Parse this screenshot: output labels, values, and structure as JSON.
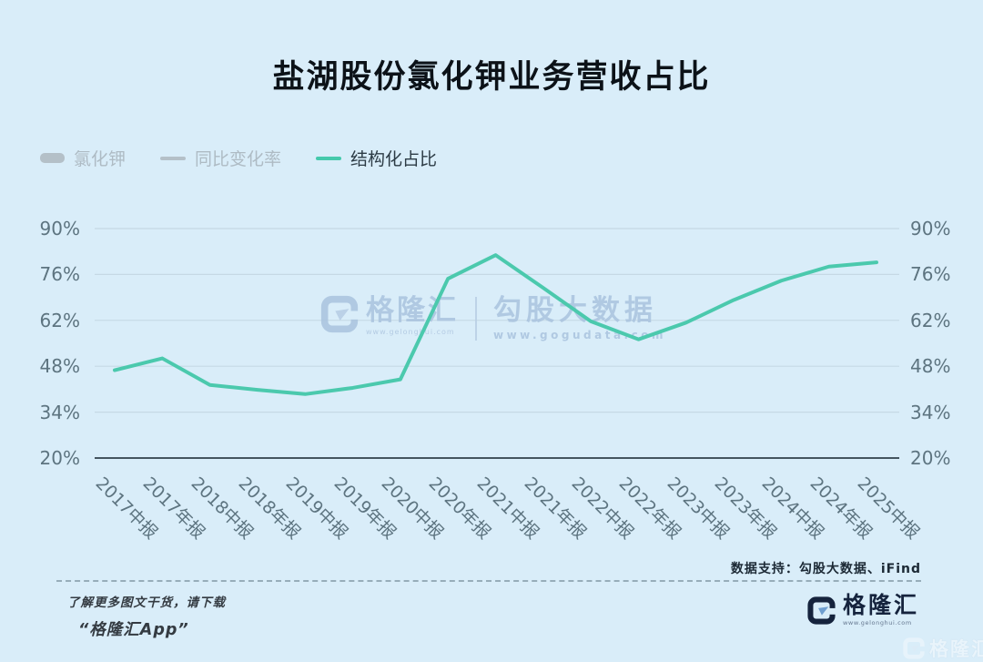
{
  "title": "盐湖股份氯化钾业务营收占比",
  "legend": [
    {
      "label": "氯化钾",
      "swatch": "bar",
      "color": "#b4c0c8",
      "text_color": "#aebbc4",
      "active": false
    },
    {
      "label": "同比变化率",
      "swatch": "line",
      "color": "#b4c0c8",
      "text_color": "#aebbc4",
      "active": false
    },
    {
      "label": "结构化占比",
      "swatch": "line",
      "color": "#45c9ac",
      "text_color": "#2c3b45",
      "active": true
    }
  ],
  "chart_data": {
    "type": "line",
    "title": "盐湖股份氯化钾业务营收占比",
    "categories": [
      "2017中报",
      "2017年报",
      "2018中报",
      "2018年报",
      "2019中报",
      "2019年报",
      "2020中报",
      "2020年报",
      "2021中报",
      "2021年报",
      "2022中报",
      "2022年报",
      "2023中报",
      "2023年报",
      "2024中报",
      "2024年报",
      "2025中报"
    ],
    "series": [
      {
        "name": "结构化占比",
        "values": [
          46.8,
          50.4,
          42.3,
          40.8,
          39.5,
          41.4,
          44.0,
          74.7,
          81.9,
          71.9,
          61.7,
          56.2,
          61.3,
          68.2,
          74.1,
          78.4,
          79.7
        ]
      }
    ],
    "unit": "%",
    "y_ticks": [
      90,
      76,
      62,
      48,
      34,
      20
    ],
    "y_tick_labels": [
      "90%",
      "76%",
      "62%",
      "48%",
      "34%",
      "20%"
    ],
    "ylim": [
      20,
      90
    ],
    "dual_y_axis": true,
    "grid": true,
    "legend_position": "top-left",
    "line_color": "#4bc9ad",
    "inactive_series": [
      "氯化钾",
      "同比变化率"
    ]
  },
  "watermark": {
    "brand": "格隆汇",
    "brand_url": "www.gelonghui.com",
    "partner": "勾股大数据",
    "partner_url": "www.gogudata.com"
  },
  "footer": {
    "source": "数据支持：勾股大数据、iFind",
    "promo_line1": "了解更多图文干货，请下载",
    "promo_line2": "“格隆汇App”",
    "brand": "格隆汇",
    "brand_url": "www.gelonghui.com",
    "corner_watermark": "格隆汇"
  },
  "colors": {
    "background": "#d9edf9",
    "accent_line": "#4bc9ad",
    "grid_line": "#c6d9e5",
    "axis_line": "#44545f",
    "axis_text": "#5d7480",
    "title_text": "#0c1218",
    "brand_navy": "#15233d"
  }
}
